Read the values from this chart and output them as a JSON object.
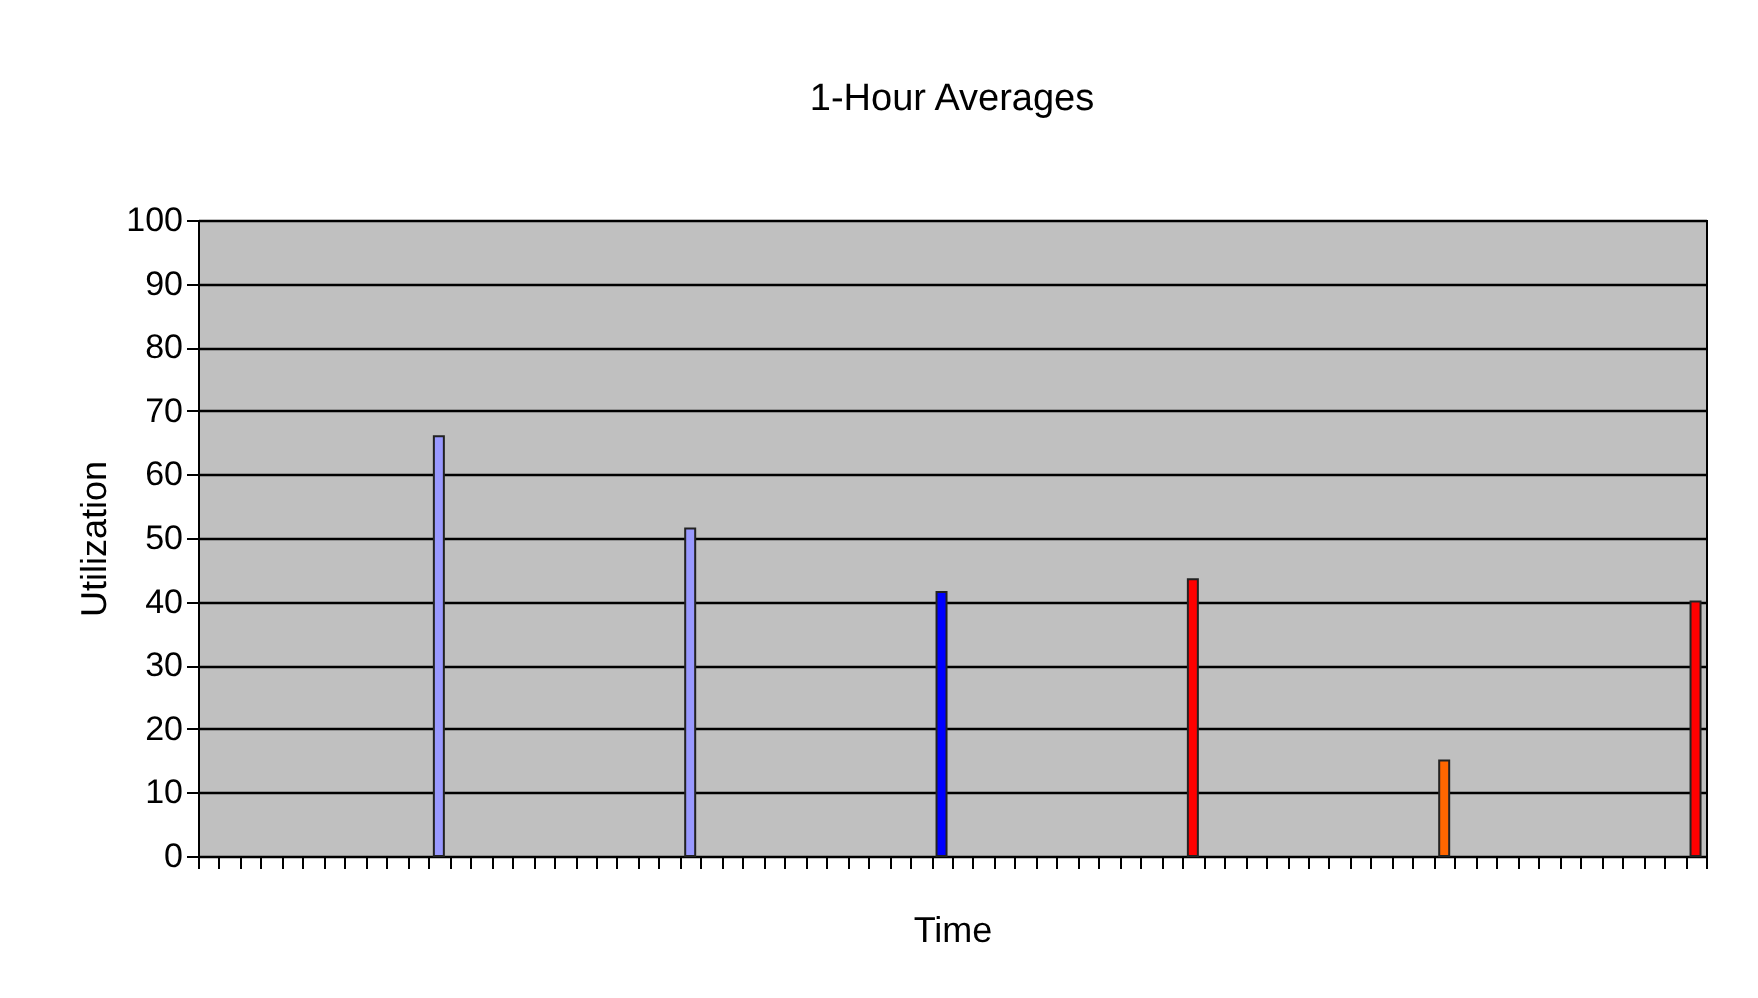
{
  "chart_data": {
    "type": "bar",
    "title": "1-Hour Averages",
    "xlabel": "Time",
    "ylabel": "Utilization",
    "categories": [
      null,
      null,
      null,
      null,
      null,
      null,
      null,
      null,
      null,
      null,
      null,
      null,
      null,
      null,
      null,
      null,
      null,
      null,
      null,
      null,
      null,
      null,
      null,
      null,
      null,
      null,
      null,
      null,
      null,
      null,
      null,
      null,
      null,
      null,
      null,
      null,
      null,
      null,
      null,
      null,
      null,
      null,
      null,
      null,
      null,
      null,
      null,
      null,
      null,
      null,
      null,
      null,
      null,
      null,
      null,
      null,
      null,
      null,
      null,
      null,
      null,
      null,
      null,
      null,
      null,
      null,
      null,
      null,
      null,
      null,
      null,
      null
    ],
    "values": [
      null,
      null,
      null,
      null,
      null,
      null,
      null,
      null,
      null,
      null,
      null,
      66,
      null,
      null,
      null,
      null,
      null,
      null,
      null,
      null,
      null,
      null,
      null,
      51.5,
      null,
      null,
      null,
      null,
      null,
      null,
      null,
      null,
      null,
      null,
      null,
      41.5,
      null,
      null,
      null,
      null,
      null,
      null,
      null,
      null,
      null,
      null,
      null,
      43.5,
      null,
      null,
      null,
      null,
      null,
      null,
      null,
      null,
      null,
      null,
      null,
      15,
      null,
      null,
      null,
      null,
      null,
      null,
      null,
      null,
      null,
      null,
      null,
      40
    ],
    "colors": [
      null,
      null,
      null,
      null,
      null,
      null,
      null,
      null,
      null,
      null,
      null,
      "#9999ff",
      null,
      null,
      null,
      null,
      null,
      null,
      null,
      null,
      null,
      null,
      null,
      "#9999ff",
      null,
      null,
      null,
      null,
      null,
      null,
      null,
      null,
      null,
      null,
      null,
      "#0000ff",
      null,
      null,
      null,
      null,
      null,
      null,
      null,
      null,
      null,
      null,
      null,
      "#ff0000",
      null,
      null,
      null,
      null,
      null,
      null,
      null,
      null,
      null,
      null,
      null,
      "#ff6600",
      null,
      null,
      null,
      null,
      null,
      null,
      null,
      null,
      null,
      null,
      null,
      "#ff0000"
    ],
    "ylim": [
      0,
      100
    ],
    "yticks": [
      0,
      10,
      20,
      30,
      40,
      50,
      60,
      70,
      80,
      90,
      100
    ],
    "grid": "y",
    "tick_labels": "y"
  }
}
